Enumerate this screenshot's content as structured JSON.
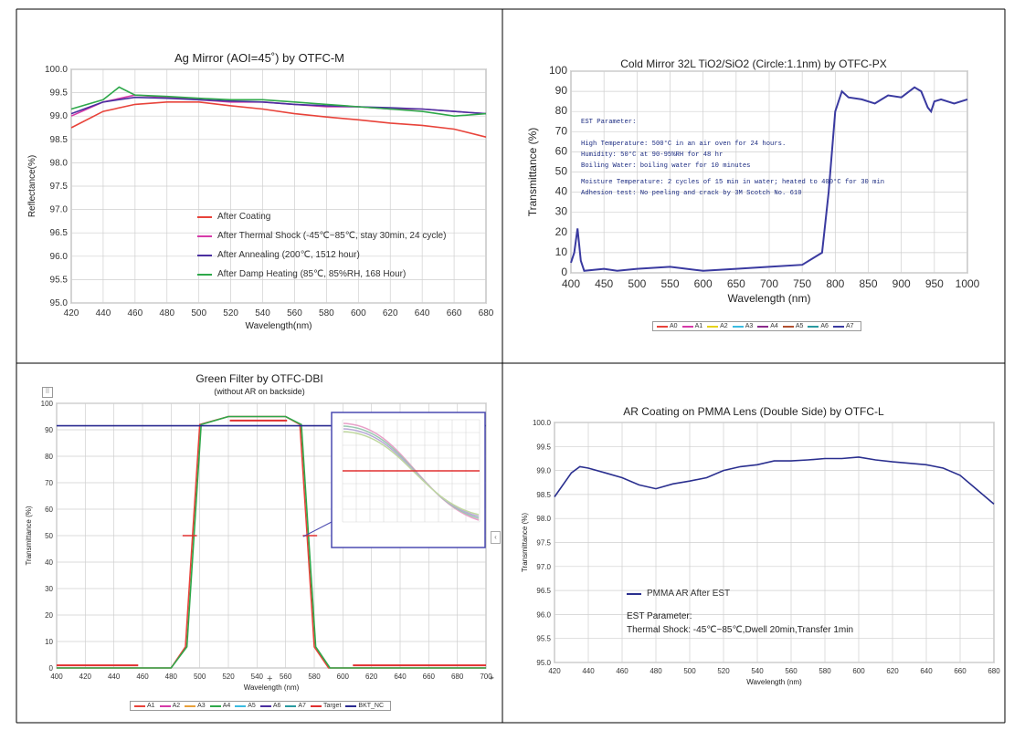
{
  "charts": [
    {
      "title": "Ag Mirror (AOI=45˚)   by OTFC-M",
      "legend": [
        "After Coating",
        "After Thermal Shock (-45℃~85℃, stay 30min, 24 cycle)",
        "After Annealing (200℃, 1512 hour)",
        "After Damp Heating (85℃, 85%RH, 168 Hour)"
      ],
      "notes": []
    },
    {
      "title": "Cold Mirror 32L TiO2/SiO2 (Circle:1.1nm) by OTFC-PX",
      "legend": [
        "A0",
        "A1",
        "A2",
        "A3",
        "A4",
        "A5",
        "A6",
        "A7"
      ],
      "notes": [
        "EST Parameter:",
        "High Temperature: 500°C in an air oven for 24 hours.",
        "Humidity: 50°C at 90-95%RH for 48 hr",
        "Boiling Water: boiling water for 10 minutes",
        "Moisture Temperature: 2 cycles of 15 min in water; heated to 400°C for 30 min",
        "Adhesion test: No peeling and crack by 3M Scotch No. 610"
      ]
    },
    {
      "title": "Green Filter   by OTFC-DBI",
      "subtitle": "(without AR on backside)",
      "legend": [
        "A1",
        "A2",
        "A3",
        "A4",
        "A5",
        "A6",
        "A7",
        "Target",
        "BKT_NC"
      ],
      "notes": []
    },
    {
      "title": "AR Coating on PMMA Lens (Double Side)  by OTFC-L",
      "legend": [
        "PMMA AR After EST"
      ],
      "notes": [
        "EST Parameter:",
        "Thermal Shock: -45℃~85℃,Dwell 20min,Transfer 1min"
      ]
    }
  ],
  "chart_data": [
    {
      "type": "line",
      "title": "Ag Mirror (AOI=45˚)   by OTFC-M",
      "xlabel": "Wavelength(nm)",
      "ylabel": "Reflectance(%)",
      "xlim": [
        420,
        680
      ],
      "ylim": [
        95.0,
        100.0
      ],
      "xticks": [
        420,
        440,
        460,
        480,
        500,
        520,
        540,
        560,
        580,
        600,
        620,
        640,
        660,
        680
      ],
      "yticks": [
        "95.0",
        "95.5",
        "96.0",
        "96.5",
        "97.0",
        "97.5",
        "98.0",
        "98.5",
        "99.0",
        "99.5",
        "100.0"
      ],
      "grid": true,
      "legend_position": "lower-center",
      "series": [
        {
          "name": "After Coating",
          "color": "#e8433a",
          "x": [
            420,
            440,
            460,
            480,
            500,
            520,
            540,
            560,
            580,
            600,
            620,
            640,
            660,
            680
          ],
          "y": [
            98.75,
            99.1,
            99.25,
            99.3,
            99.3,
            99.22,
            99.15,
            99.05,
            98.98,
            98.92,
            98.85,
            98.8,
            98.72,
            98.55
          ]
        },
        {
          "name": "After Thermal Shock (-45℃~85℃, stay 30min, 24 cycle)",
          "color": "#d63aa8",
          "x": [
            420,
            440,
            460,
            480,
            500,
            520,
            540,
            560,
            580,
            600,
            620,
            640,
            660,
            680
          ],
          "y": [
            99.0,
            99.3,
            99.45,
            99.4,
            99.35,
            99.3,
            99.3,
            99.25,
            99.2,
            99.2,
            99.15,
            99.15,
            99.1,
            99.05
          ]
        },
        {
          "name": "After Annealing (200℃, 1512 hour)",
          "color": "#4a2fa0",
          "x": [
            420,
            440,
            460,
            480,
            500,
            520,
            540,
            560,
            580,
            600,
            620,
            640,
            660,
            680
          ],
          "y": [
            99.05,
            99.3,
            99.4,
            99.38,
            99.35,
            99.32,
            99.3,
            99.25,
            99.22,
            99.2,
            99.18,
            99.15,
            99.1,
            99.05
          ]
        },
        {
          "name": "After Damp Heating (85℃, 85%RH, 168 Hour)",
          "color": "#2ea84a",
          "x": [
            420,
            440,
            450,
            460,
            480,
            500,
            520,
            540,
            560,
            580,
            600,
            620,
            640,
            660,
            680
          ],
          "y": [
            99.15,
            99.35,
            99.62,
            99.45,
            99.42,
            99.38,
            99.35,
            99.35,
            99.3,
            99.25,
            99.2,
            99.15,
            99.1,
            99.0,
            99.05
          ]
        }
      ]
    },
    {
      "type": "line",
      "title": "Cold Mirror 32L TiO2/SiO2 (Circle:1.1nm) by OTFC-PX",
      "xlabel": "Wavelength (nm)",
      "ylabel": "Transmittance (%)",
      "xlim": [
        400,
        1000
      ],
      "ylim": [
        0,
        100
      ],
      "xticks": [
        400,
        450,
        500,
        550,
        600,
        650,
        700,
        750,
        800,
        850,
        900,
        950,
        1000
      ],
      "yticks": [
        0,
        10,
        20,
        30,
        40,
        50,
        60,
        70,
        80,
        90,
        100
      ],
      "grid": true,
      "legend_position": "bottom",
      "series": [
        {
          "name": "A7",
          "color": "#3a3aa0",
          "x": [
            400,
            405,
            410,
            415,
            420,
            450,
            470,
            500,
            550,
            600,
            650,
            700,
            750,
            780,
            790,
            800,
            810,
            820,
            840,
            860,
            880,
            900,
            920,
            930,
            940,
            945,
            950,
            960,
            980,
            1000
          ],
          "y": [
            5,
            10,
            22,
            6,
            1,
            2,
            1,
            2,
            3,
            1,
            2,
            3,
            4,
            10,
            40,
            80,
            90,
            87,
            86,
            84,
            88,
            87,
            92,
            90,
            82,
            80,
            85,
            86,
            84,
            86
          ]
        }
      ]
    },
    {
      "type": "line",
      "title": "Green Filter   by OTFC-DBI",
      "subtitle": "(without AR on backside)",
      "xlabel": "Wavelength (nm)",
      "ylabel": "Transmittance (%)",
      "xlim": [
        400,
        700
      ],
      "ylim": [
        0,
        100
      ],
      "xticks": [
        400,
        420,
        440,
        460,
        480,
        500,
        520,
        540,
        560,
        580,
        600,
        620,
        640,
        660,
        680,
        700
      ],
      "yticks": [
        0,
        10,
        20,
        30,
        40,
        50,
        60,
        70,
        80,
        90,
        100
      ],
      "grid": true,
      "legend_position": "bottom",
      "series": [
        {
          "name": "A1",
          "color": "#e8433a",
          "x": [
            400,
            480,
            490,
            495,
            500,
            520,
            540,
            560,
            570,
            575,
            580,
            590,
            700
          ],
          "y": [
            0,
            0,
            8,
            50,
            92,
            95,
            95,
            95,
            92,
            50,
            8,
            0,
            0
          ]
        },
        {
          "name": "A4",
          "color": "#2ea84a",
          "x": [
            400,
            480,
            491,
            496,
            501,
            520,
            540,
            560,
            571,
            576,
            581,
            591,
            700
          ],
          "y": [
            0,
            0,
            8,
            50,
            92,
            95,
            95,
            95,
            92,
            50,
            8,
            0,
            0
          ]
        },
        {
          "name": "BKT_NC",
          "color": "#2a2a90",
          "x": [
            400,
            700
          ],
          "y": [
            91.5,
            91.5
          ]
        }
      ]
    },
    {
      "type": "line",
      "title": "AR Coating on PMMA Lens (Double Side)  by OTFC-L",
      "xlabel": "Wavelength (nm)",
      "ylabel": "Transmittance (%)",
      "xlim": [
        420,
        680
      ],
      "ylim": [
        95.0,
        100.0
      ],
      "xticks": [
        420,
        440,
        460,
        480,
        500,
        520,
        540,
        560,
        580,
        600,
        620,
        640,
        660,
        680
      ],
      "yticks": [
        "95.0",
        "95.5",
        "96.0",
        "96.5",
        "97.0",
        "97.5",
        "98.0",
        "98.5",
        "99.0",
        "99.5",
        "100.0"
      ],
      "grid": true,
      "legend_position": "lower-left",
      "series": [
        {
          "name": "PMMA AR After EST",
          "color": "#2a2f8f",
          "x": [
            420,
            430,
            435,
            440,
            450,
            460,
            470,
            480,
            490,
            500,
            510,
            520,
            530,
            540,
            550,
            560,
            570,
            580,
            590,
            600,
            610,
            620,
            630,
            640,
            650,
            660,
            670,
            680
          ],
          "y": [
            98.45,
            98.95,
            99.08,
            99.05,
            98.95,
            98.85,
            98.7,
            98.62,
            98.72,
            98.78,
            98.85,
            99.0,
            99.08,
            99.12,
            99.2,
            99.2,
            99.22,
            99.25,
            99.25,
            99.28,
            99.22,
            99.18,
            99.15,
            99.12,
            99.05,
            98.9,
            98.6,
            98.3
          ]
        }
      ]
    }
  ]
}
